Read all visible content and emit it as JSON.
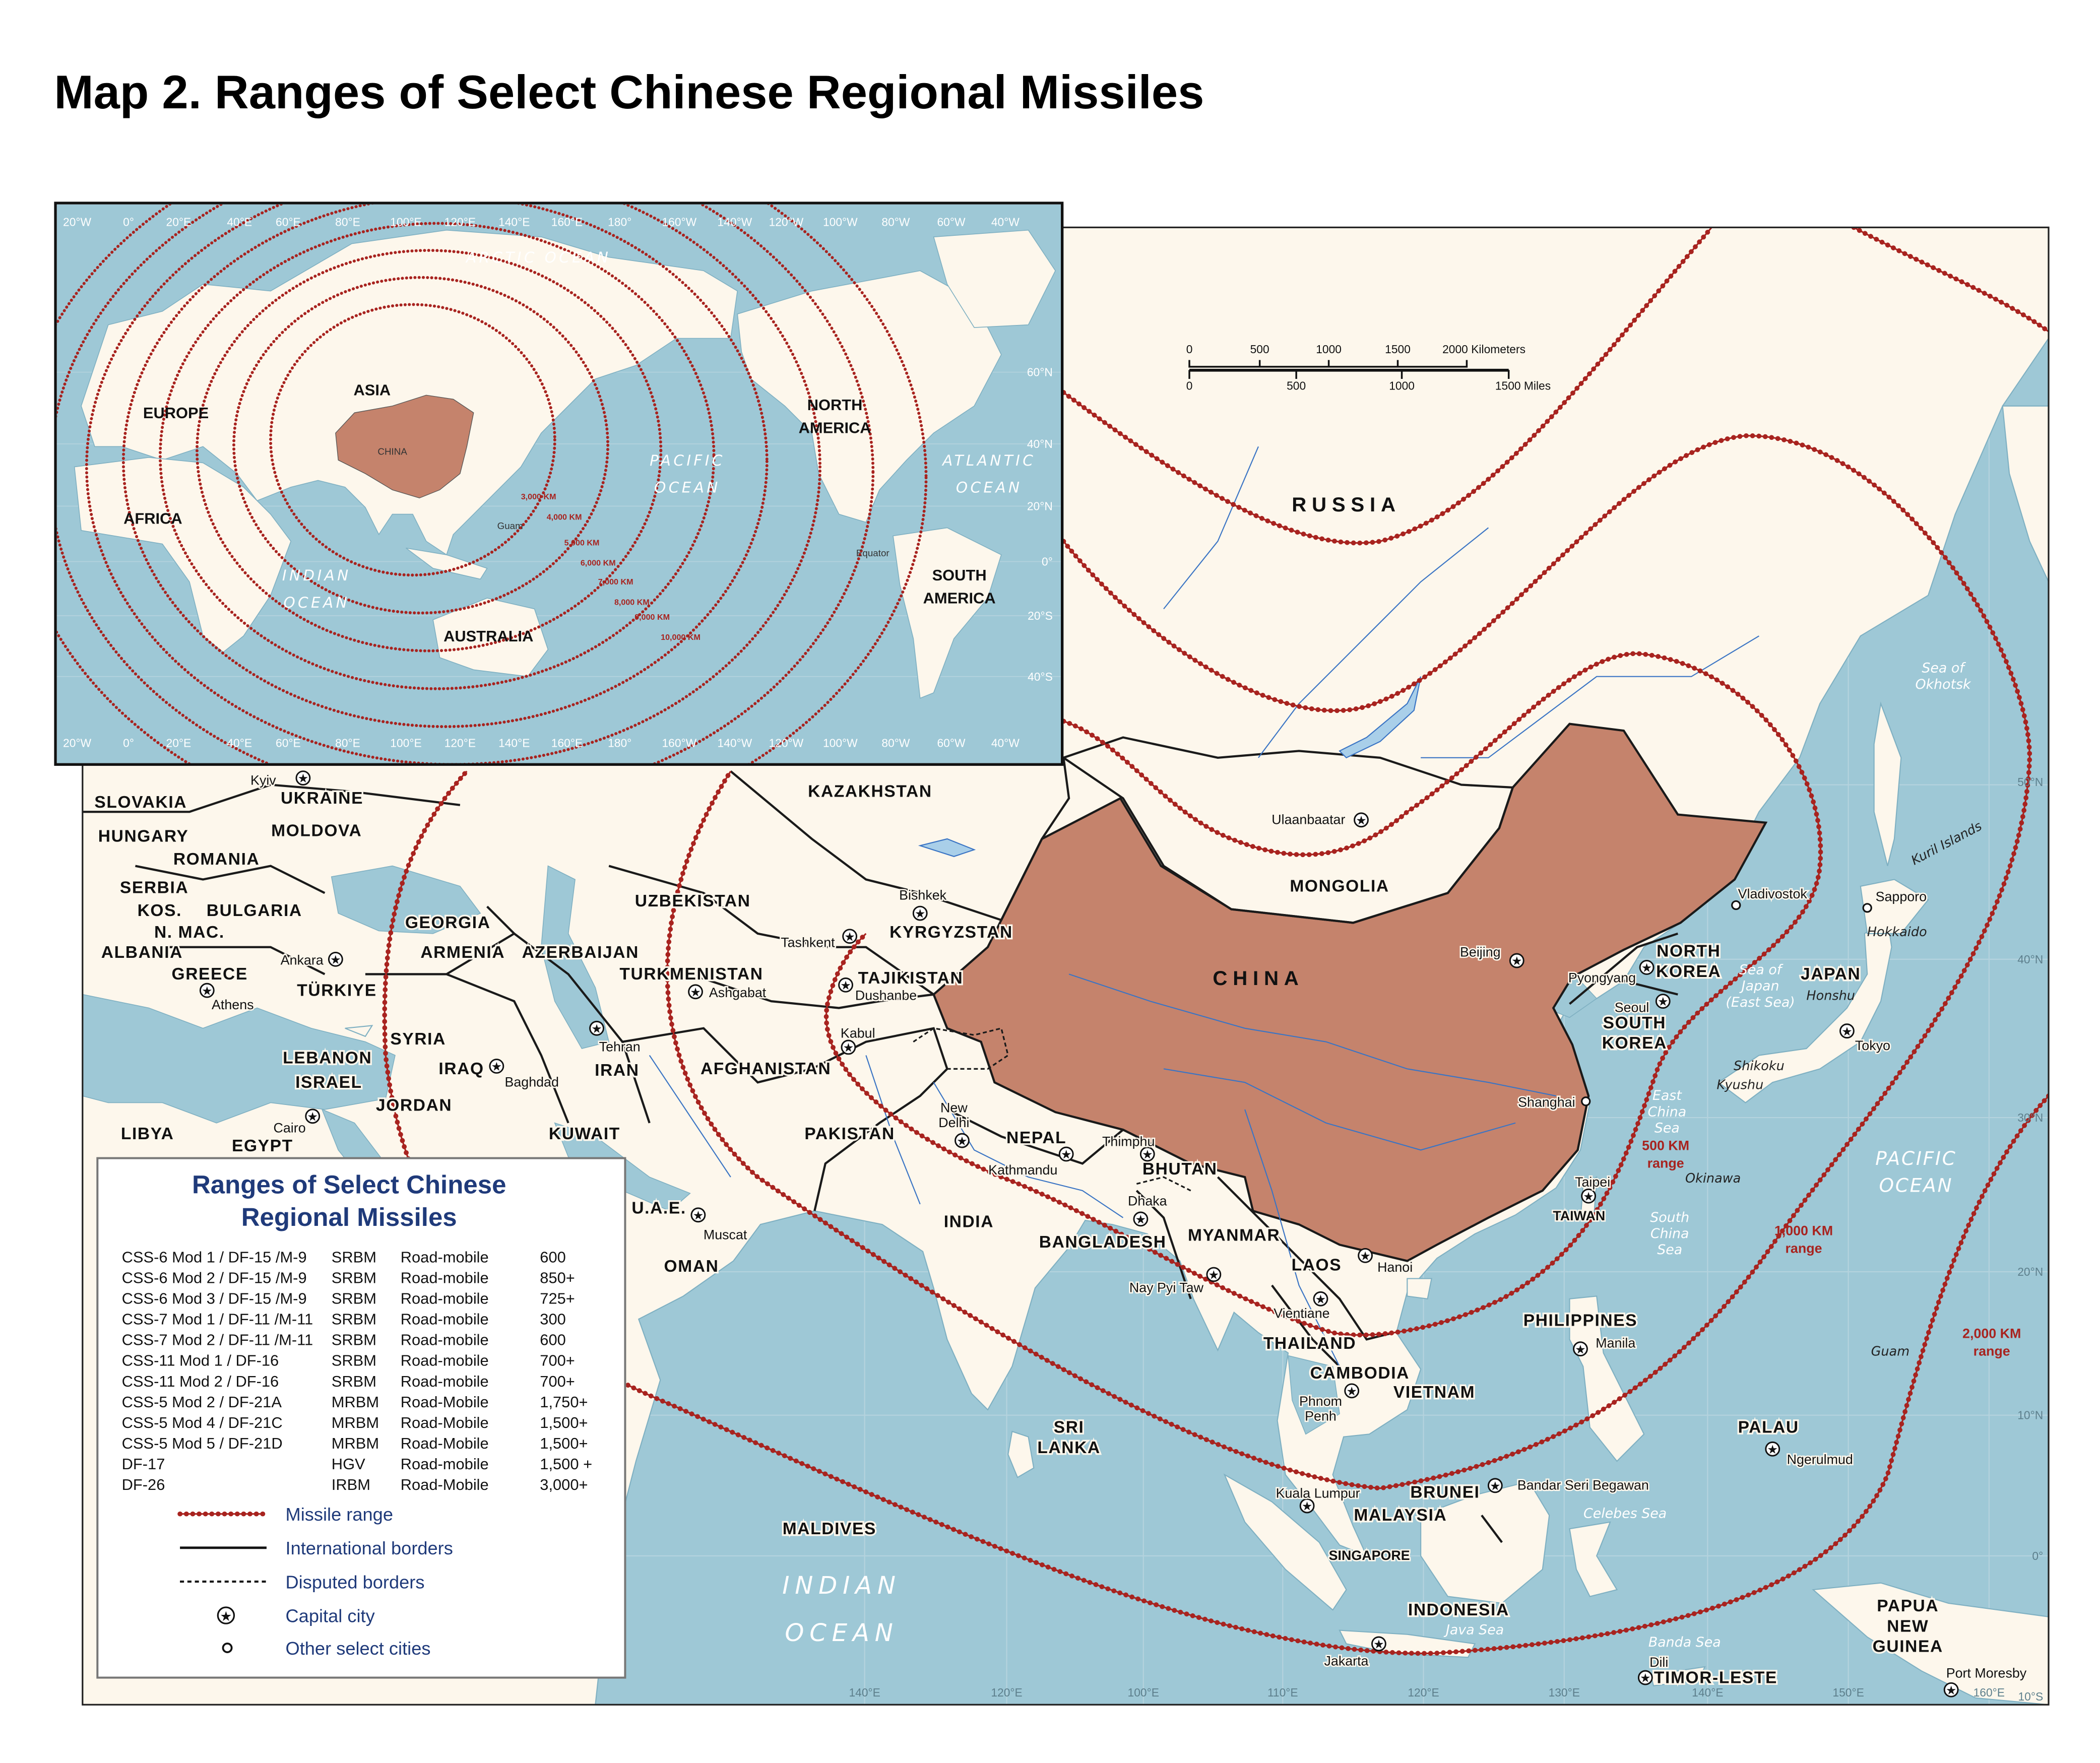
{
  "title": "Map 2. Ranges of Select Chinese Regional Missiles",
  "colors": {
    "ocean": "#9ec8d6",
    "land": "#fdf7ec",
    "china": "#c5836c",
    "missile_range": "#a8231f",
    "legend_text": "#1f3a7a"
  },
  "scale_bar": {
    "km_ticks": [
      "0",
      "500",
      "1000",
      "1500",
      "2000 Kilometers"
    ],
    "mi_ticks": [
      "0",
      "500",
      "1000",
      "1500 Miles"
    ]
  },
  "legend": {
    "title": [
      "Ranges of Select Chinese",
      "Regional Missiles"
    ],
    "rows": [
      {
        "designation": "CSS-6 Mod 1 / DF-15 /M-9",
        "class": "SRBM",
        "basing": "Road-mobile",
        "range": "600"
      },
      {
        "designation": "CSS-6 Mod 2 / DF-15 /M-9",
        "class": "SRBM",
        "basing": "Road-mobile",
        "range": "850+"
      },
      {
        "designation": "CSS-6 Mod 3 / DF-15 /M-9",
        "class": "SRBM",
        "basing": "Road-mobile",
        "range": "725+"
      },
      {
        "designation": "CSS-7 Mod 1 / DF-11 /M-11",
        "class": "SRBM",
        "basing": "Road-mobile",
        "range": "300"
      },
      {
        "designation": "CSS-7 Mod 2 / DF-11 /M-11",
        "class": "SRBM",
        "basing": "Road-mobile",
        "range": "600"
      },
      {
        "designation": "CSS-11 Mod 1 / DF-16",
        "class": "SRBM",
        "basing": "Road-mobile",
        "range": "700+"
      },
      {
        "designation": "CSS-11 Mod 2 / DF-16",
        "class": "SRBM",
        "basing": "Road-mobile",
        "range": "700+"
      },
      {
        "designation": "CSS-5 Mod 2 / DF-21A",
        "class": "MRBM",
        "basing": "Road-Mobile",
        "range": "1,750+"
      },
      {
        "designation": "CSS-5 Mod 4 / DF-21C",
        "class": "MRBM",
        "basing": "Road-Mobile",
        "range": "1,500+"
      },
      {
        "designation": "CSS-5 Mod 5 / DF-21D",
        "class": "MRBM",
        "basing": "Road-Mobile",
        "range": "1,500+"
      },
      {
        "designation": "DF-17",
        "class": "HGV",
        "basing": "Road-mobile",
        "range": "1,500 +"
      },
      {
        "designation": "DF-26",
        "class": "IRBM",
        "basing": "Road-Mobile",
        "range": "3,000+"
      }
    ],
    "key": [
      {
        "label": "Missile range",
        "symbol": "red-dotted-line"
      },
      {
        "label": "International borders",
        "symbol": "solid-black-line"
      },
      {
        "label": "Disputed borders",
        "symbol": "dashed-black-line"
      },
      {
        "label": "Capital city",
        "symbol": "circled-star-icon"
      },
      {
        "label": "Other select cities",
        "symbol": "open-circle-icon"
      }
    ]
  },
  "main_map": {
    "countries": [
      "RUSSIA",
      "CHINA",
      "MONGOLIA",
      "KAZAKHSTAN",
      "UZBEKISTAN",
      "KYRGYZSTAN",
      "TAJIKISTAN",
      "TURKMENISTAN",
      "AFGHANISTAN",
      "PAKISTAN",
      "INDIA",
      "NEPAL",
      "BHUTAN",
      "BANGLADESH",
      "MYANMAR",
      "LAOS",
      "THAILAND",
      "CAMBODIA",
      "VIETNAM",
      "PHILIPPINES",
      "MALAYSIA",
      "BRUNEI",
      "INDONESIA",
      "TIMOR-LESTE",
      [
        "PAPUA",
        "NEW",
        "GUINEA"
      ],
      "PALAU",
      "JAPAN",
      [
        "NORTH",
        "KOREA"
      ],
      [
        "SOUTH",
        "KOREA"
      ],
      "TAIWAN",
      [
        "SRI",
        "LANKA"
      ],
      "MALDIVES",
      "IRAN",
      "IRAQ",
      "SYRIA",
      "LEBANON",
      "ISRAEL",
      "JORDAN",
      "KUWAIT",
      "U.A.E.",
      "OMAN",
      "TÜRKIYE",
      "GEORGIA",
      "ARMENIA",
      "AZERBAIJAN",
      "GREECE",
      "ALBANIA",
      "N. MAC.",
      "KOS.",
      "SERBIA",
      "BULGARIA",
      "ROMANIA",
      "MOLDOVA",
      "HUNGARY",
      "SLOVAKIA",
      "UKRAINE",
      "LIBYA",
      "EGYPT",
      "SINGAPORE"
    ],
    "cities": [
      {
        "name": "Kyiv",
        "type": "capital"
      },
      {
        "name": "Ulaanbaatar",
        "type": "capital"
      },
      {
        "name": "Bishkek",
        "type": "capital"
      },
      {
        "name": "Tashkent",
        "type": "capital"
      },
      {
        "name": "Dushanbe",
        "type": "capital"
      },
      {
        "name": "Ashgabat",
        "type": "capital"
      },
      {
        "name": "Kabul",
        "type": "capital"
      },
      {
        "name": "Tehran",
        "type": "capital"
      },
      {
        "name": "Baghdad",
        "type": "capital"
      },
      {
        "name": "Ankara",
        "type": "capital"
      },
      {
        "name": "Athens",
        "type": "capital"
      },
      {
        "name": "Cairo",
        "type": "capital"
      },
      {
        "name": "Muscat",
        "type": "capital"
      },
      {
        "name": [
          "New",
          "Delhi"
        ],
        "type": "capital"
      },
      {
        "name": "Kathmandu",
        "type": "capital"
      },
      {
        "name": "Thimphu",
        "type": "capital"
      },
      {
        "name": "Dhaka",
        "type": "capital"
      },
      {
        "name": "Nay Pyi Taw",
        "type": "capital"
      },
      {
        "name": "Hanoi",
        "type": "capital"
      },
      {
        "name": "Vientiane",
        "type": "capital"
      },
      {
        "name": [
          "Phnom",
          "Penh"
        ],
        "type": "capital"
      },
      {
        "name": "Beijing",
        "type": "capital"
      },
      {
        "name": "Pyongyang",
        "type": "capital"
      },
      {
        "name": "Seoul",
        "type": "capital"
      },
      {
        "name": "Tokyo",
        "type": "capital"
      },
      {
        "name": "Shanghai",
        "type": "other"
      },
      {
        "name": "Taipei",
        "type": "capital"
      },
      {
        "name": "Manila",
        "type": "capital"
      },
      {
        "name": "Bandar Seri Begawan",
        "type": "capital"
      },
      {
        "name": "Kuala Lumpur",
        "type": "capital"
      },
      {
        "name": "Jakarta",
        "type": "capital"
      },
      {
        "name": "Dili",
        "type": "capital"
      },
      {
        "name": "Ngerulmud",
        "type": "capital"
      },
      {
        "name": "Port Moresby",
        "type": "capital"
      },
      {
        "name": "Vladivostok",
        "type": "other"
      },
      {
        "name": "Sapporo",
        "type": "other"
      }
    ],
    "water": [
      [
        "Sea of",
        "Okhotsk"
      ],
      "Kuril Islands",
      "Hokkaido",
      "Honshu",
      [
        "Sea of",
        "Japan",
        "(East Sea)"
      ],
      "Shikoku",
      "Kyushu",
      [
        "East",
        "China",
        "Sea"
      ],
      "Okinawa",
      [
        "South",
        "China",
        "Sea"
      ],
      "Guam",
      "Celebes Sea",
      "Java Sea",
      "Banda Sea"
    ],
    "oceans": [
      [
        "PACIFIC",
        "OCEAN"
      ],
      [
        "INDIAN",
        "OCEAN"
      ]
    ],
    "range_labels": [
      [
        "500 KM",
        "range"
      ],
      [
        "1,000 KM",
        "range"
      ],
      [
        "2,000 KM",
        "range"
      ]
    ],
    "lat_labels": [
      "50°N",
      "40°N",
      "30°N",
      "20°N",
      "10°N",
      "0°",
      "10°S"
    ],
    "lon_labels": [
      "140°E",
      "120°E",
      "100°E",
      "110°E",
      "120°E",
      "130°E",
      "140°E",
      "150°E",
      "160°E"
    ]
  },
  "inset_map": {
    "lon_labels": [
      "20°W",
      "0°",
      "20°E",
      "40°E",
      "60°E",
      "80°E",
      "100°E",
      "120°E",
      "140°E",
      "160°E",
      "180°",
      "160°W",
      "140°W",
      "120°W",
      "100°W",
      "80°W",
      "60°W",
      "40°W"
    ],
    "lat_labels": [
      "60°N",
      "40°N",
      "20°N",
      "0°",
      "20°S",
      "40°S"
    ],
    "continents": [
      "ASIA",
      "EUROPE",
      "AFRICA",
      [
        "NORTH",
        "AMERICA"
      ],
      [
        "SOUTH",
        "AMERICA"
      ],
      "AUSTRALIA"
    ],
    "china_label": "CHINA",
    "oceans": [
      "ARCTIC  OCEAN",
      [
        "PACIFIC",
        "OCEAN"
      ],
      [
        "ATLANTIC",
        "OCEAN"
      ],
      [
        "INDIAN",
        "OCEAN"
      ]
    ],
    "small_labels": [
      "Guam",
      "Equator"
    ],
    "range_labels": [
      "3,000 KM",
      "4,000 KM",
      "5,000 KM",
      "6,000 KM",
      "7,000 KM",
      "8,000 KM",
      "9,000 KM",
      "10,000 KM"
    ]
  }
}
